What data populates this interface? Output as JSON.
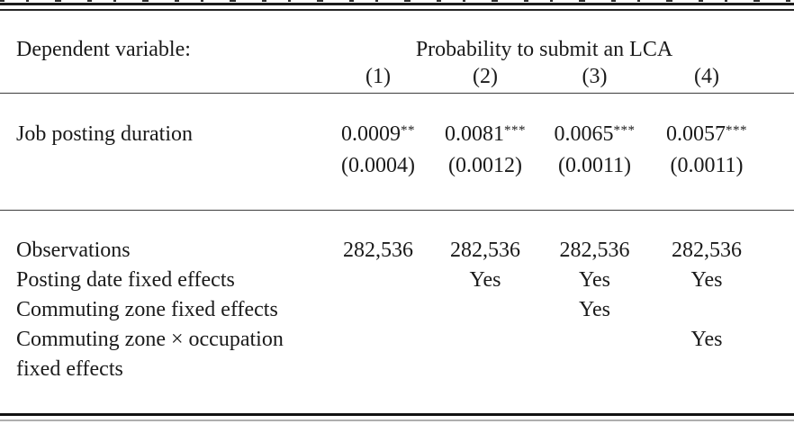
{
  "colors": {
    "background": "#ffffff",
    "text": "#1a1a1a",
    "rule_dark": "#1b1b1b",
    "rule_gray": "#aeaeae"
  },
  "table": {
    "dependent_variable_label": "Dependent variable:",
    "dependent_variable": "Probability to submit an LCA",
    "column_headers": [
      "(1)",
      "(2)",
      "(3)",
      "(4)"
    ],
    "coef_row": {
      "label": "Job posting duration",
      "cells": [
        {
          "coef": "0.0009",
          "stars": "**"
        },
        {
          "coef": "0.0081",
          "stars": "***"
        },
        {
          "coef": "0.0065",
          "stars": "***"
        },
        {
          "coef": "0.0057",
          "stars": "***"
        }
      ],
      "std_errors": [
        "(0.0004)",
        "(0.0012)",
        "(0.0011)",
        "(0.0011)"
      ]
    },
    "stats_rows": [
      {
        "label": "Observations",
        "values": [
          "282,536",
          "282,536",
          "282,536",
          "282,536"
        ]
      },
      {
        "label": "Posting date fixed effects",
        "values": [
          "",
          "Yes",
          "Yes",
          "Yes"
        ]
      },
      {
        "label": "Commuting zone fixed effects",
        "values": [
          "",
          "",
          "Yes",
          ""
        ]
      },
      {
        "label": "Commuting zone × occupation",
        "values": [
          "",
          "",
          "",
          "Yes"
        ]
      },
      {
        "label": "fixed effects",
        "values": [
          "",
          "",
          "",
          ""
        ]
      }
    ]
  }
}
